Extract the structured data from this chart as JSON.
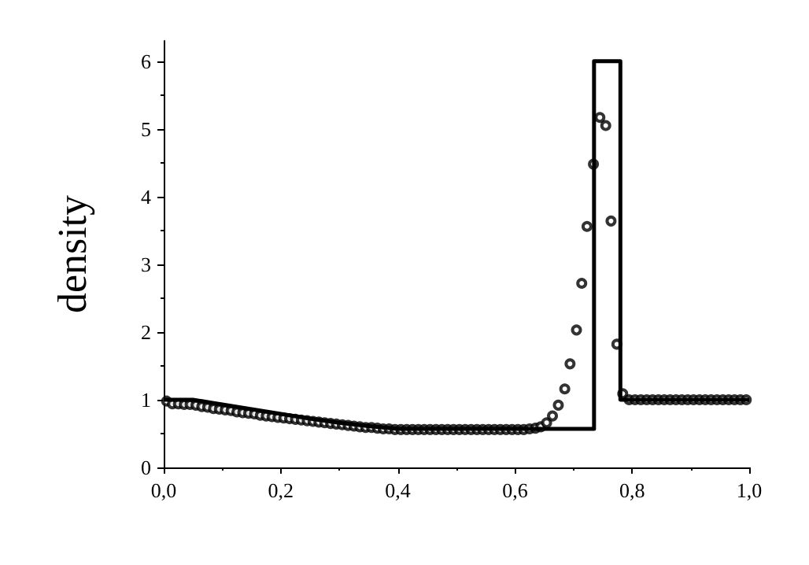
{
  "chart_data": {
    "type": "line",
    "ylabel": "density",
    "xlim": [
      0,
      1
    ],
    "ylim": [
      0,
      6.3
    ],
    "xticks": [
      {
        "value": 0,
        "label": "0,0"
      },
      {
        "value": 0.2,
        "label": "0,2"
      },
      {
        "value": 0.4,
        "label": "0,4"
      },
      {
        "value": 0.6,
        "label": "0,6"
      },
      {
        "value": 0.8,
        "label": "0,8"
      },
      {
        "value": 1,
        "label": "1,0"
      }
    ],
    "yticks": [
      0,
      1,
      2,
      3,
      4,
      5,
      6
    ],
    "grid": false,
    "series": [
      {
        "color": "#000000",
        "marker": "none",
        "line_style": "solid",
        "x": [
          0,
          0.05,
          0.1,
          0.15,
          0.2,
          0.25,
          0.3,
          0.35,
          0.4,
          0.735,
          0.735,
          0.78,
          0.78,
          1
        ],
        "values": [
          1,
          1,
          0.93,
          0.86,
          0.79,
          0.72,
          0.66,
          0.61,
          0.57,
          0.57,
          6,
          6,
          1,
          1
        ]
      },
      {
        "type": "scatter",
        "color": "#000000",
        "marker": "circle",
        "x": [
          0.005,
          0.015,
          0.025,
          0.035,
          0.045,
          0.055,
          0.065,
          0.075,
          0.085,
          0.095,
          0.105,
          0.115,
          0.125,
          0.135,
          0.145,
          0.155,
          0.165,
          0.175,
          0.185,
          0.195,
          0.205,
          0.215,
          0.225,
          0.235,
          0.245,
          0.255,
          0.265,
          0.275,
          0.285,
          0.295,
          0.305,
          0.315,
          0.325,
          0.335,
          0.345,
          0.355,
          0.365,
          0.375,
          0.385,
          0.395,
          0.405,
          0.415,
          0.425,
          0.435,
          0.445,
          0.455,
          0.465,
          0.475,
          0.485,
          0.495,
          0.505,
          0.515,
          0.525,
          0.535,
          0.545,
          0.555,
          0.565,
          0.575,
          0.585,
          0.595,
          0.605,
          0.615,
          0.625,
          0.635,
          0.644,
          0.654,
          0.664,
          0.674,
          0.685,
          0.694,
          0.705,
          0.714,
          0.723,
          0.734,
          0.745,
          0.755,
          0.764,
          0.774,
          0.784,
          0.795,
          0.805,
          0.815,
          0.825,
          0.835,
          0.845,
          0.855,
          0.865,
          0.875,
          0.885,
          0.895,
          0.905,
          0.915,
          0.925,
          0.935,
          0.945,
          0.955,
          0.965,
          0.975,
          0.985,
          0.995
        ],
        "values": [
          0.98,
          0.94,
          0.94,
          0.93,
          0.93,
          0.92,
          0.9,
          0.89,
          0.87,
          0.86,
          0.85,
          0.84,
          0.82,
          0.81,
          0.8,
          0.79,
          0.77,
          0.76,
          0.75,
          0.74,
          0.73,
          0.72,
          0.71,
          0.7,
          0.69,
          0.68,
          0.67,
          0.66,
          0.65,
          0.64,
          0.63,
          0.62,
          0.61,
          0.6,
          0.59,
          0.59,
          0.58,
          0.57,
          0.57,
          0.56,
          0.56,
          0.56,
          0.56,
          0.56,
          0.56,
          0.56,
          0.56,
          0.56,
          0.56,
          0.56,
          0.56,
          0.56,
          0.56,
          0.56,
          0.56,
          0.56,
          0.56,
          0.56,
          0.56,
          0.56,
          0.56,
          0.56,
          0.57,
          0.58,
          0.6,
          0.66,
          0.76,
          0.92,
          1.16,
          1.53,
          2.03,
          2.72,
          3.56,
          4.48,
          5.17,
          5.05,
          3.64,
          1.82,
          1.09,
          1,
          1,
          1,
          1,
          1,
          1,
          1,
          1,
          1,
          1,
          1,
          1,
          1,
          1,
          1,
          1,
          1,
          1,
          1,
          1,
          1
        ]
      }
    ]
  }
}
